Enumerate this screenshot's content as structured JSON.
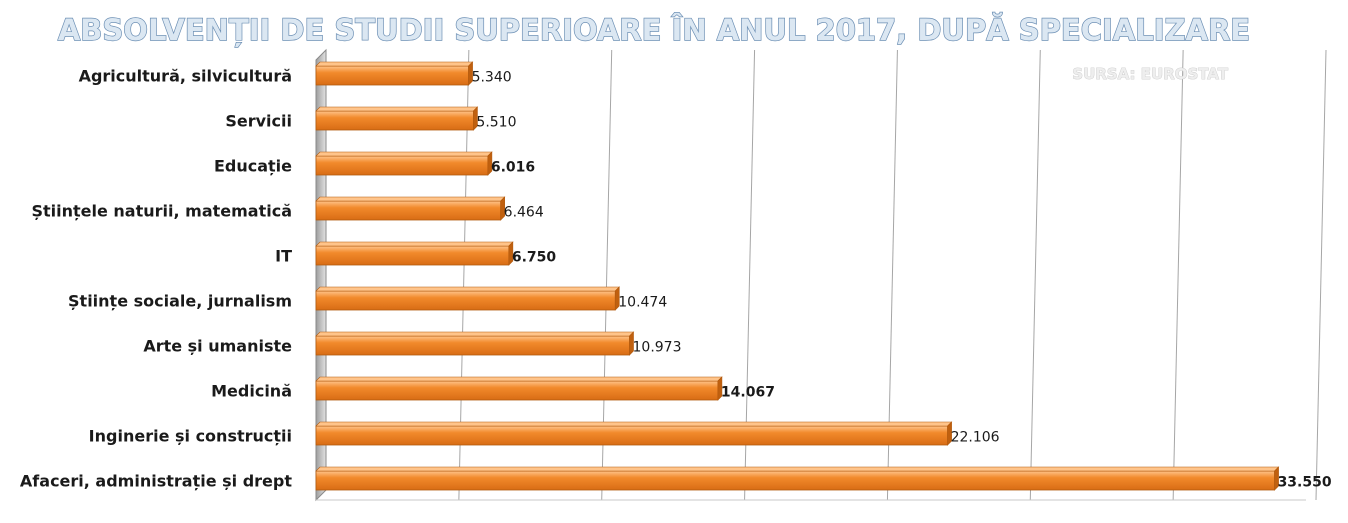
{
  "chart_data": {
    "type": "bar",
    "orientation": "horizontal",
    "title": "ABSOLVENȚII DE STUDII SUPERIOARE ÎN ANUL 2017, DUPĂ SPECIALIZARE",
    "source_note": "SURSA: EUROSTAT",
    "categories": [
      "Agricultură, silvicultură",
      "Servicii",
      "Educație",
      "Științele naturii, matematică",
      "IT",
      "Științe sociale, jurnalism",
      "Arte și umaniste",
      "Medicină",
      "Inginerie și construcții",
      "Afaceri, administrație și drept"
    ],
    "values": [
      5340,
      5510,
      6016,
      6464,
      6750,
      10474,
      10973,
      14067,
      22106,
      33550
    ],
    "value_labels": [
      "5.340",
      "5.510",
      "6.016",
      "6.464",
      "6.750",
      "10.474",
      "10.973",
      "14.067",
      "22.106",
      "33.550"
    ],
    "bold_labels": [
      false,
      false,
      true,
      false,
      true,
      false,
      false,
      true,
      false,
      true
    ],
    "xlim": [
      0,
      35000
    ],
    "grid": "vertical",
    "xlabel": "",
    "ylabel": "",
    "colors": {
      "bar": "#f28a2c",
      "bar_top": "#ffc48a",
      "bar_edge": "#b35a0e",
      "title_fill": "#dbe7f2",
      "title_stroke": "#6c8fb4",
      "source": "#e6e6e6",
      "grid": "#a6a6a6",
      "wall": "#bdbdbd"
    }
  }
}
